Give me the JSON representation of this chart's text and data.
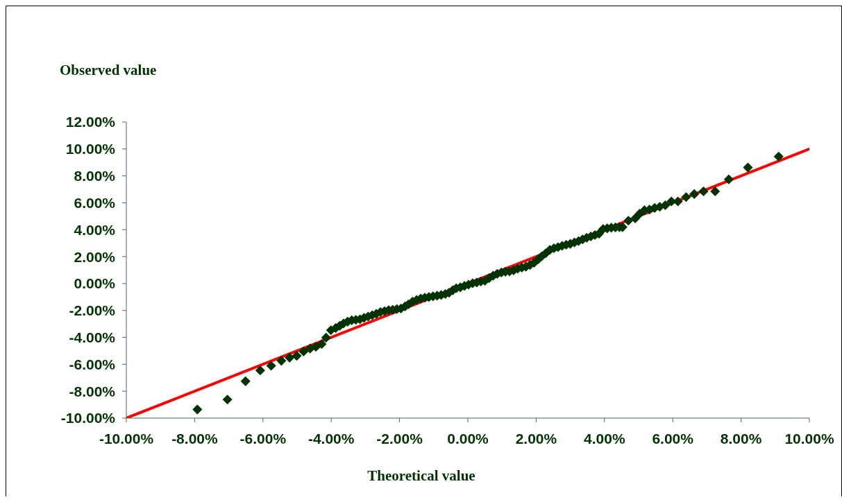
{
  "chart_data": {
    "type": "scatter",
    "xlabel": "Theoretical value",
    "ylabel": "Observed value",
    "xlim": [
      -10,
      10
    ],
    "ylim": [
      -10,
      12
    ],
    "xticks": [
      {
        "value": -10,
        "label": "-10.00%"
      },
      {
        "value": -8,
        "label": "-8.00%"
      },
      {
        "value": -6,
        "label": "-6.00%"
      },
      {
        "value": -4,
        "label": "-4.00%"
      },
      {
        "value": -2,
        "label": "-2.00%"
      },
      {
        "value": 0,
        "label": "0.00%"
      },
      {
        "value": 2,
        "label": "2.00%"
      },
      {
        "value": 4,
        "label": "4.00%"
      },
      {
        "value": 6,
        "label": "6.00%"
      },
      {
        "value": 8,
        "label": "8.00%"
      },
      {
        "value": 10,
        "label": "10.00%"
      }
    ],
    "yticks": [
      {
        "value": -10,
        "label": "-10.00%"
      },
      {
        "value": -8,
        "label": "-8.00%"
      },
      {
        "value": -6,
        "label": "-6.00%"
      },
      {
        "value": -4,
        "label": "-4.00%"
      },
      {
        "value": -2,
        "label": "-2.00%"
      },
      {
        "value": 0,
        "label": "0.00%"
      },
      {
        "value": 2,
        "label": "2.00%"
      },
      {
        "value": 4,
        "label": "4.00%"
      },
      {
        "value": 6,
        "label": "6.00%"
      },
      {
        "value": 8,
        "label": "8.00%"
      },
      {
        "value": 10,
        "label": "10.00%"
      },
      {
        "value": 12,
        "label": "12.00%"
      }
    ],
    "series": [
      {
        "type": "line",
        "color": "#ff0000",
        "marker": "none",
        "x": [
          -10,
          10
        ],
        "values": [
          -10,
          10
        ]
      },
      {
        "color": "#003300",
        "marker": "diamond",
        "x": [
          -7.92,
          -7.04,
          -6.51,
          -6.08,
          -5.76,
          -5.46,
          -5.22,
          -5.01,
          -4.81,
          -4.62,
          -4.45,
          -4.28,
          -4.15,
          -4.01,
          -3.87,
          -3.75,
          -3.64,
          -3.52,
          -3.4,
          -3.28,
          -3.16,
          -3.04,
          -2.92,
          -2.8,
          -2.68,
          -2.56,
          -2.44,
          -2.32,
          -2.2,
          -2.08,
          -1.96,
          -1.84,
          -1.74,
          -1.62,
          -1.5,
          -1.38,
          -1.26,
          -1.14,
          -1.02,
          -0.9,
          -0.78,
          -0.66,
          -0.55,
          -0.44,
          -0.34,
          -0.22,
          -0.1,
          0.02,
          0.14,
          0.26,
          0.38,
          0.5,
          0.62,
          0.74,
          0.86,
          0.98,
          1.1,
          1.22,
          1.34,
          1.46,
          1.58,
          1.7,
          1.82,
          1.94,
          2.06,
          2.16,
          2.28,
          2.4,
          2.52,
          2.64,
          2.76,
          2.88,
          3.0,
          3.12,
          3.24,
          3.36,
          3.48,
          3.6,
          3.72,
          3.84,
          3.96,
          4.08,
          4.2,
          4.32,
          4.44,
          4.53,
          4.7,
          4.9,
          5.03,
          5.17,
          5.32,
          5.47,
          5.62,
          5.78,
          5.96,
          6.15,
          6.39,
          6.63,
          6.9,
          7.24,
          7.64,
          8.2,
          9.1
        ],
        "values": [
          -9.36,
          -8.62,
          -7.26,
          -6.46,
          -6.11,
          -5.74,
          -5.51,
          -5.37,
          -5.05,
          -4.83,
          -4.7,
          -4.5,
          -4.02,
          -3.47,
          -3.31,
          -3.14,
          -2.97,
          -2.83,
          -2.73,
          -2.7,
          -2.66,
          -2.55,
          -2.45,
          -2.35,
          -2.25,
          -2.12,
          -2.05,
          -1.98,
          -1.95,
          -1.9,
          -1.86,
          -1.7,
          -1.55,
          -1.35,
          -1.22,
          -1.12,
          -1.05,
          -1.0,
          -0.95,
          -0.9,
          -0.85,
          -0.78,
          -0.68,
          -0.5,
          -0.35,
          -0.28,
          -0.18,
          -0.08,
          0.02,
          0.07,
          0.15,
          0.2,
          0.4,
          0.58,
          0.72,
          0.82,
          0.88,
          0.9,
          0.98,
          1.1,
          1.18,
          1.25,
          1.38,
          1.55,
          1.8,
          2.02,
          2.25,
          2.5,
          2.62,
          2.7,
          2.8,
          2.88,
          2.95,
          3.05,
          3.15,
          3.28,
          3.4,
          3.5,
          3.6,
          3.7,
          4.05,
          4.1,
          4.15,
          4.17,
          4.18,
          4.19,
          4.67,
          4.84,
          5.19,
          5.45,
          5.5,
          5.62,
          5.7,
          5.82,
          6.1,
          6.1,
          6.42,
          6.65,
          6.85,
          6.85,
          7.74,
          8.62,
          9.44
        ]
      }
    ]
  }
}
